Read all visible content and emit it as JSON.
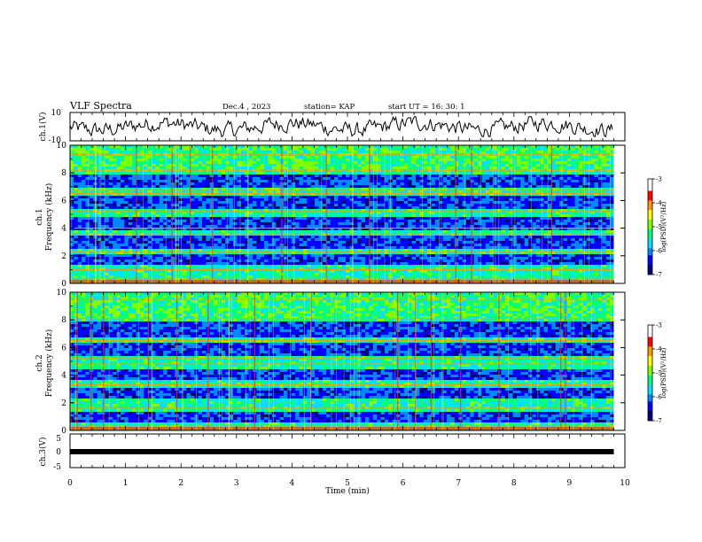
{
  "header": {
    "title": "VLF Spectra",
    "date": "Dec.4 , 2023",
    "station": "station= KAP",
    "start": "start UT = 16: 30: 1"
  },
  "chart_data": [
    {
      "type": "line",
      "panel": "ch1-waveform",
      "ylabel": "ch.1(V)",
      "ylim": [
        -10,
        10
      ],
      "yticks": [
        "10",
        "-10"
      ],
      "xlim": [
        0,
        10
      ],
      "x_extent_min": 9.8,
      "y_range_observed": [
        -7,
        7
      ]
    },
    {
      "type": "heatmap",
      "panel": "ch1-spectrogram",
      "ylabel": "ch.1\nFrequency (kHz)",
      "ylim": [
        0,
        10
      ],
      "yticks": [
        "0",
        "2",
        "4",
        "6",
        "8",
        "10"
      ],
      "xlim": [
        0,
        10
      ],
      "x_extent_min": 9.8,
      "quiet_bands_khz": [
        [
          1.4,
          2.2
        ],
        [
          2.5,
          3.4
        ],
        [
          3.9,
          4.9
        ],
        [
          5.4,
          6.3
        ],
        [
          7.0,
          7.8
        ]
      ],
      "line_bands_khz": [
        0.3,
        1.0,
        2.3,
        3.6,
        4.0,
        5.2,
        6.5,
        6.8,
        8.2,
        9.3
      ],
      "colorbar": {
        "label": "log(PSD)(V²/Hz)",
        "range": [
          -7,
          -3
        ],
        "ticks": [
          "-3",
          "-4",
          "-5",
          "-6",
          "-7"
        ]
      }
    },
    {
      "type": "heatmap",
      "panel": "ch2-spectrogram",
      "ylabel": "ch.2\nFrequency (kHz)",
      "ylim": [
        0,
        10
      ],
      "yticks": [
        "0",
        "2",
        "4",
        "6",
        "8",
        "10"
      ],
      "xlim": [
        0,
        10
      ],
      "x_extent_min": 9.8,
      "quiet_bands_khz": [
        [
          0.6,
          1.3
        ],
        [
          2.3,
          3.1
        ],
        [
          3.6,
          4.5
        ],
        [
          5.3,
          6.3
        ],
        [
          6.7,
          7.8
        ]
      ],
      "line_bands_khz": [
        0.3,
        1.6,
        3.3,
        4.8,
        5.2,
        6.5,
        8.1,
        9.5
      ],
      "colorbar": {
        "label": "log(PSD)(V²/Hz)",
        "range": [
          -7,
          -3
        ],
        "ticks": [
          "-3",
          "-4",
          "-5",
          "-6",
          "-7"
        ]
      }
    },
    {
      "type": "line",
      "panel": "ch3-trace",
      "ylabel": "ch.3(V)",
      "ylim": [
        -5,
        5
      ],
      "yticks": [
        "5",
        "0",
        "-5"
      ],
      "xlim": [
        0,
        10
      ],
      "x_extent_min": 9.8,
      "level_v": 0
    }
  ],
  "xaxis": {
    "label": "Time (min)",
    "ticks": [
      "0",
      "1",
      "2",
      "3",
      "4",
      "5",
      "6",
      "7",
      "8",
      "9",
      "10"
    ]
  },
  "colors": {
    "scale": [
      "#00007a",
      "#0000ff",
      "#0088ff",
      "#00e0ff",
      "#00ff80",
      "#80ff00",
      "#ffff00",
      "#ff9900",
      "#ff0000",
      "#ffffff"
    ]
  }
}
